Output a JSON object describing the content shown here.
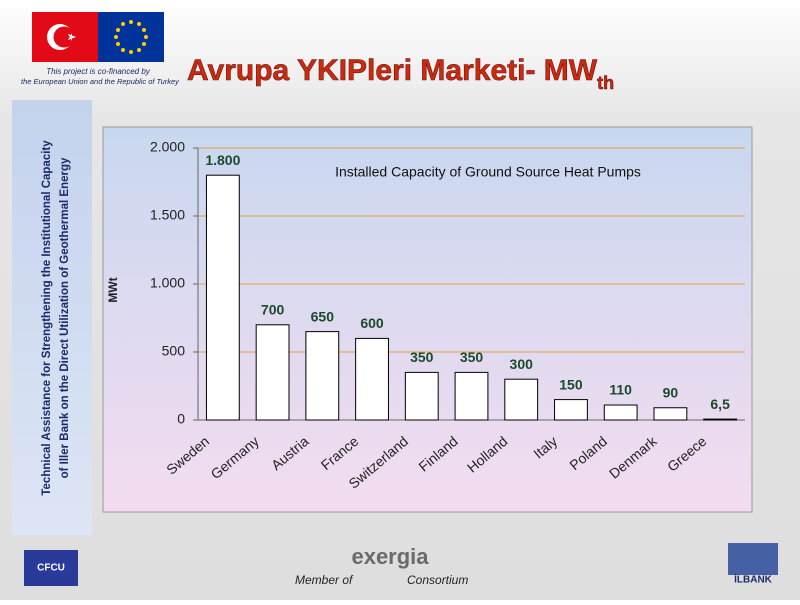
{
  "header": {
    "note_line1": "This project is co-financed by",
    "note_line2": "the European Union and the Republic of Turkey",
    "title": "Avrupa YKIPleri Marketi- MW",
    "title_sub": "th"
  },
  "sidebar": {
    "line1": "Technical Assistance for Strengthening the Institutional Capacity",
    "line2": "of Iller Bank on the Direct Utilization of Geothermal Energy"
  },
  "footer": {
    "left_logo": "CFCU",
    "center_logo": "exergia",
    "member_of": "Member of",
    "consortium": "Consortium",
    "right_logo": "İLBANK"
  },
  "chart_data": {
    "type": "bar",
    "title": "Installed Capacity of Ground Source Heat Pumps",
    "y_label": "MWt",
    "categories": [
      "Sweden",
      "Germany",
      "Austria",
      "France",
      "Switzerland",
      "Finland",
      "Holland",
      "Italy",
      "Poland",
      "Denmark",
      "Greece"
    ],
    "values": [
      1800,
      700,
      650,
      600,
      350,
      350,
      300,
      150,
      110,
      90,
      6.5
    ],
    "value_labels": [
      "1.800",
      "700",
      "650",
      "600",
      "350",
      "350",
      "300",
      "150",
      "110",
      "90",
      "6,5"
    ],
    "color": "#ffffff",
    "ylim": [
      0,
      2000
    ],
    "yticks": [
      0,
      500,
      {
        "value": 1000,
        "label": "1.000"
      },
      {
        "value": 1500,
        "label": "1.500"
      },
      {
        "value": 2000,
        "label": "2.000"
      }
    ],
    "grid": true,
    "grid_color": "#e8a040"
  }
}
